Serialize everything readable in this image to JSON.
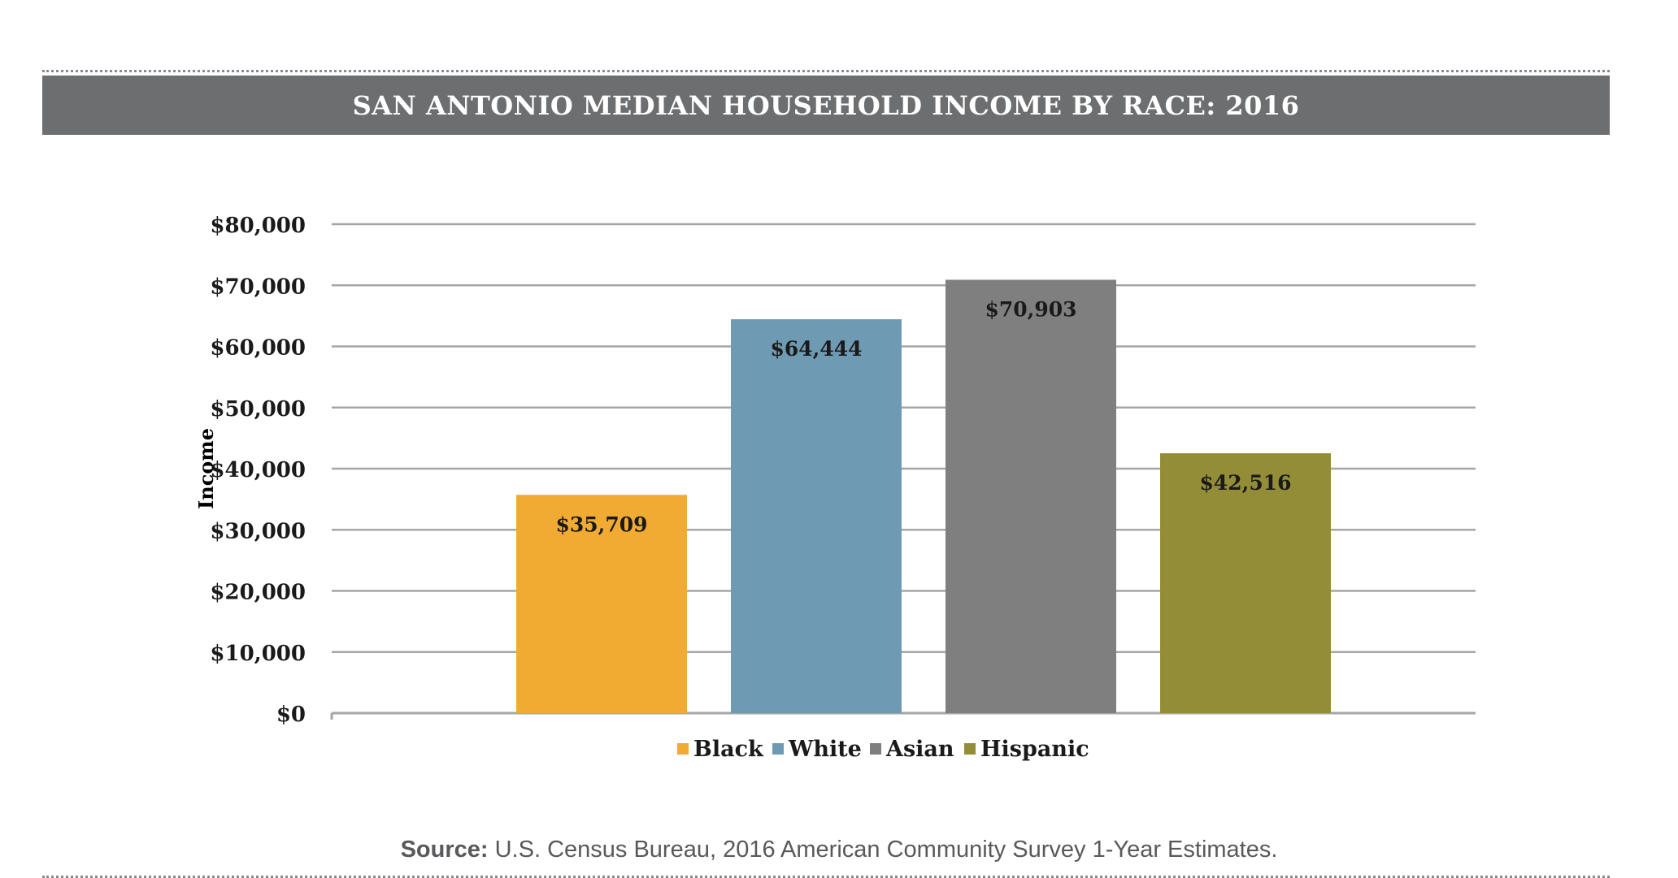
{
  "title": "SAN ANTONIO MEDIAN HOUSEHOLD INCOME BY RACE: 2016",
  "source": {
    "label": "Source:",
    "text": "U.S. Census Bureau, 2016 American Community Survey 1-Year Estimates."
  },
  "chart_data": {
    "type": "bar",
    "title": "SAN ANTONIO MEDIAN HOUSEHOLD INCOME BY RACE: 2016",
    "xlabel": "",
    "ylabel": "Income",
    "ylim": [
      0,
      80000
    ],
    "yticks": [
      0,
      10000,
      20000,
      30000,
      40000,
      50000,
      60000,
      70000,
      80000
    ],
    "ytick_labels": [
      "$0",
      "$10,000",
      "$20,000",
      "$30,000",
      "$40,000",
      "$50,000",
      "$60,000",
      "$70,000",
      "$80,000"
    ],
    "grid": true,
    "legend_position": "bottom",
    "categories": [
      "Black",
      "White",
      "Asian",
      "Hispanic"
    ],
    "values": [
      35709,
      64444,
      70903,
      42516
    ],
    "data_labels": [
      "$35,709",
      "$64,444",
      "$70,903",
      "$42,516"
    ],
    "colors": [
      "#f1ab33",
      "#6f9ab3",
      "#7f7f80",
      "#948d38"
    ]
  },
  "colors": {
    "title_bar": "#6d6e70",
    "gridline": "#a6a6a6",
    "source_text": "#58595b"
  }
}
